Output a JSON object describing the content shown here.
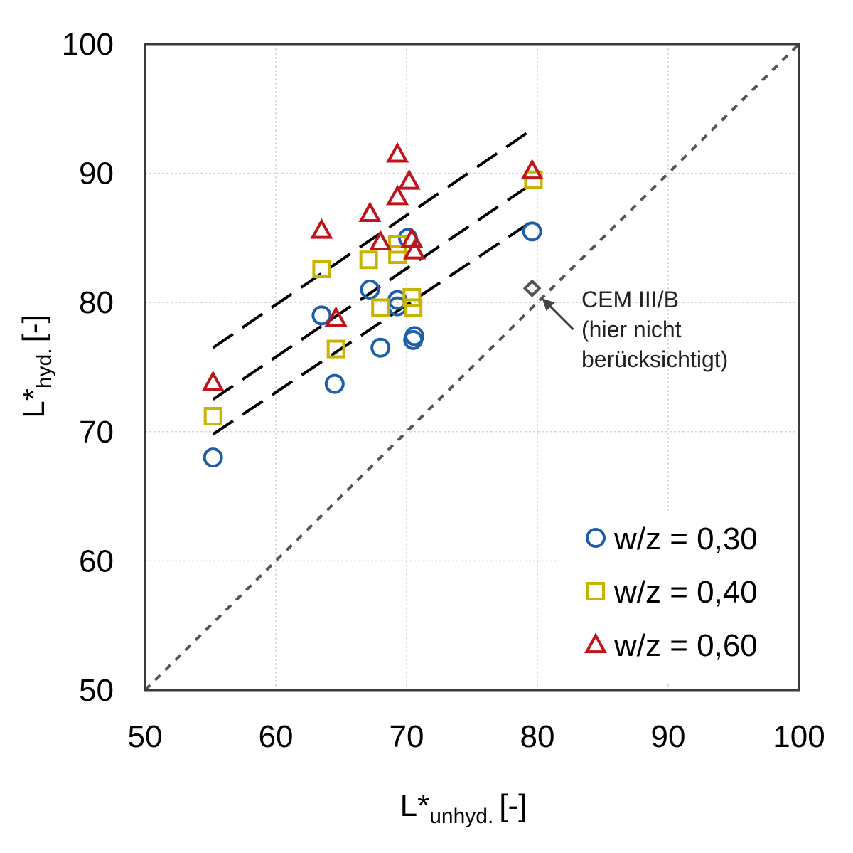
{
  "chart_data": {
    "type": "scatter",
    "title": "",
    "xlabel_main": "L*",
    "xlabel_sub": "unhyd.",
    "xlabel_unit": "[-]",
    "ylabel_main": "L*",
    "ylabel_sub": "hyd.",
    "ylabel_unit": "[-]",
    "xlim": [
      50,
      100
    ],
    "ylim": [
      50,
      100
    ],
    "xticks": [
      50,
      60,
      70,
      80,
      90,
      100
    ],
    "yticks": [
      50,
      60,
      70,
      80,
      90,
      100
    ],
    "grid": true,
    "legend_position": "bottom-right",
    "colors": {
      "blue": "#1f5fa8",
      "yellow": "#c8b400",
      "red": "#c0141c",
      "gray": "#555555"
    },
    "series": [
      {
        "name": "w/z = 0,30",
        "marker": "circle",
        "color": "#1f5fa8",
        "points": [
          [
            55.2,
            68.0
          ],
          [
            63.5,
            79.0
          ],
          [
            64.5,
            73.7
          ],
          [
            67.2,
            81.0
          ],
          [
            68.0,
            76.5
          ],
          [
            69.3,
            80.2
          ],
          [
            69.3,
            79.7
          ],
          [
            70.1,
            85.0
          ],
          [
            70.5,
            77.1
          ],
          [
            70.6,
            77.4
          ],
          [
            79.6,
            85.5
          ]
        ]
      },
      {
        "name": "w/z = 0,40",
        "marker": "square",
        "color": "#c8b400",
        "points": [
          [
            55.2,
            71.2
          ],
          [
            63.5,
            82.6
          ],
          [
            64.6,
            76.4
          ],
          [
            67.1,
            83.3
          ],
          [
            68.0,
            79.6
          ],
          [
            69.3,
            84.5
          ],
          [
            69.3,
            83.7
          ],
          [
            70.4,
            80.4
          ],
          [
            70.5,
            79.6
          ],
          [
            79.7,
            89.5
          ]
        ]
      },
      {
        "name": "w/z = 0,60",
        "marker": "triangle",
        "color": "#c0141c",
        "points": [
          [
            55.2,
            73.8
          ],
          [
            63.5,
            85.6
          ],
          [
            64.6,
            78.8
          ],
          [
            67.2,
            86.9
          ],
          [
            68.0,
            84.7
          ],
          [
            69.3,
            91.5
          ],
          [
            69.3,
            88.2
          ],
          [
            70.2,
            89.4
          ],
          [
            70.4,
            84.9
          ],
          [
            70.6,
            84.0
          ],
          [
            79.6,
            90.2
          ]
        ]
      }
    ],
    "excluded_point": {
      "marker": "diamond",
      "color": "#555555",
      "x": 79.6,
      "y": 81.1
    },
    "trend_lines": [
      {
        "style": "dashed",
        "from": [
          55.2,
          76.5
        ],
        "to": [
          79.6,
          93.4
        ]
      },
      {
        "style": "dashed",
        "from": [
          55.2,
          72.5
        ],
        "to": [
          79.6,
          89.2
        ]
      },
      {
        "style": "dashed",
        "from": [
          55.2,
          69.8
        ],
        "to": [
          79.6,
          86.3
        ]
      }
    ],
    "reference_line": {
      "style": "dotted",
      "from": [
        50,
        50
      ],
      "to": [
        100,
        100
      ]
    },
    "annotation": {
      "lines": [
        "CEM III/B",
        "(hier nicht",
        "berücksichtigt)"
      ],
      "points_to": [
        79.6,
        81.1
      ]
    }
  }
}
